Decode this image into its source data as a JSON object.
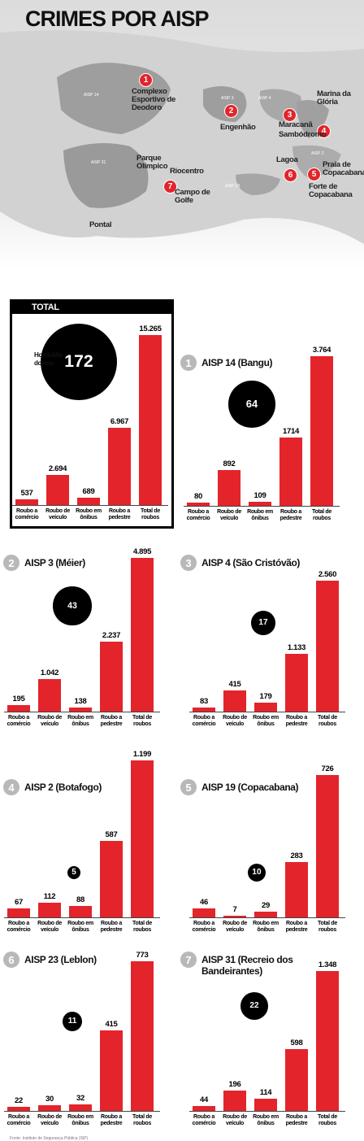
{
  "title": "CRIMES POR AISP",
  "map": {
    "regions": [
      "AISP 14",
      "AISP 3",
      "AISP 4",
      "AISP 2",
      "AISP 31",
      "AISP 23"
    ],
    "markers": [
      "1",
      "2",
      "3",
      "4",
      "5",
      "6",
      "7"
    ],
    "places": [
      "Complexo Esportivo de Deodoro",
      "Engenhão",
      "Maracanã",
      "Sambódromo",
      "Marina da Glória",
      "Praia de Copacabana",
      "Forte de Copacabana",
      "Lagoa",
      "Parque Olímpico",
      "Riocentro",
      "Campo de Golfe",
      "Pontal"
    ]
  },
  "chart_data": [
    {
      "type": "bar",
      "title": "TOTAL",
      "homicides": 172,
      "homicides_label": "Homicídio doloso",
      "color": "#e3242b",
      "categories": [
        "Roubo a comércio",
        "Roubo de veículo",
        "Roubo em ônibus",
        "Roubo a pedestre",
        "Total de roubos"
      ],
      "values": [
        537,
        2694,
        689,
        6967,
        15265
      ],
      "value_labels": [
        "537",
        "2.694",
        "689",
        "6.967",
        "15.265"
      ]
    },
    {
      "type": "bar",
      "number": "1",
      "title": "AISP 14 (Bangu)",
      "homicides": 64,
      "color": "#e3242b",
      "categories": [
        "Roubo a comércio",
        "Roubo de veículo",
        "Roubo em ônibus",
        "Roubo a pedestre",
        "Total de roubos"
      ],
      "values": [
        80,
        892,
        109,
        1714,
        3764
      ],
      "value_labels": [
        "80",
        "892",
        "109",
        "1714",
        "3.764"
      ]
    },
    {
      "type": "bar",
      "number": "2",
      "title": "AISP 3 (Méier)",
      "homicides": 43,
      "color": "#e3242b",
      "categories": [
        "Roubo a comércio",
        "Roubo de veículo",
        "Roubo em ônibus",
        "Roubo a pedestre",
        "Total de roubos"
      ],
      "values": [
        195,
        1042,
        138,
        2237,
        4895
      ],
      "value_labels": [
        "195",
        "1.042",
        "138",
        "2.237",
        "4.895"
      ]
    },
    {
      "type": "bar",
      "number": "3",
      "title": "AISP 4 (São Cristóvão)",
      "homicides": 17,
      "color": "#e3242b",
      "categories": [
        "Roubo a comércio",
        "Roubo de veículo",
        "Roubo em ônibus",
        "Roubo a pedestre",
        "Total de roubos"
      ],
      "values": [
        83,
        415,
        179,
        1133,
        2560
      ],
      "value_labels": [
        "83",
        "415",
        "179",
        "1.133",
        "2.560"
      ]
    },
    {
      "type": "bar",
      "number": "4",
      "title": "AISP 2 (Botafogo)",
      "homicides": 5,
      "color": "#e3242b",
      "categories": [
        "Roubo a comércio",
        "Roubo de veículo",
        "Roubo em ônibus",
        "Roubo a pedestre",
        "Total de roubos"
      ],
      "values": [
        67,
        112,
        88,
        587,
        1199
      ],
      "value_labels": [
        "67",
        "112",
        "88",
        "587",
        "1.199"
      ]
    },
    {
      "type": "bar",
      "number": "5",
      "title": "AISP 19 (Copacabana)",
      "homicides": 10,
      "color": "#e3242b",
      "categories": [
        "Roubo a comércio",
        "Roubo de veículo",
        "Roubo em ônibus",
        "Roubo a pedestre",
        "Total de roubos"
      ],
      "values": [
        46,
        7,
        29,
        283,
        726
      ]
    },
    {
      "type": "bar",
      "number": "6",
      "title": "AISP 23 (Leblon)",
      "homicides": 11,
      "color": "#e3242b",
      "categories": [
        "Roubo a comércio",
        "Roubo de veículo",
        "Roubo em ônibus",
        "Roubo a pedestre",
        "Total de roubos"
      ],
      "values": [
        22,
        30,
        32,
        415,
        773
      ]
    },
    {
      "type": "bar",
      "number": "7",
      "title": "AISP 31 (Recreio dos Bandeirantes)",
      "homicides": 22,
      "color": "#e3242b",
      "categories": [
        "Roubo a comércio",
        "Roubo de veículo",
        "Roubo em ônibus",
        "Roubo a pedestre",
        "Total de roubos"
      ],
      "values": [
        44,
        196,
        114,
        598,
        1348
      ],
      "value_labels": [
        "44",
        "196",
        "114",
        "598",
        "1.348"
      ]
    }
  ],
  "source": "Fonte: Instituto de Segurança Pública (ISP)"
}
